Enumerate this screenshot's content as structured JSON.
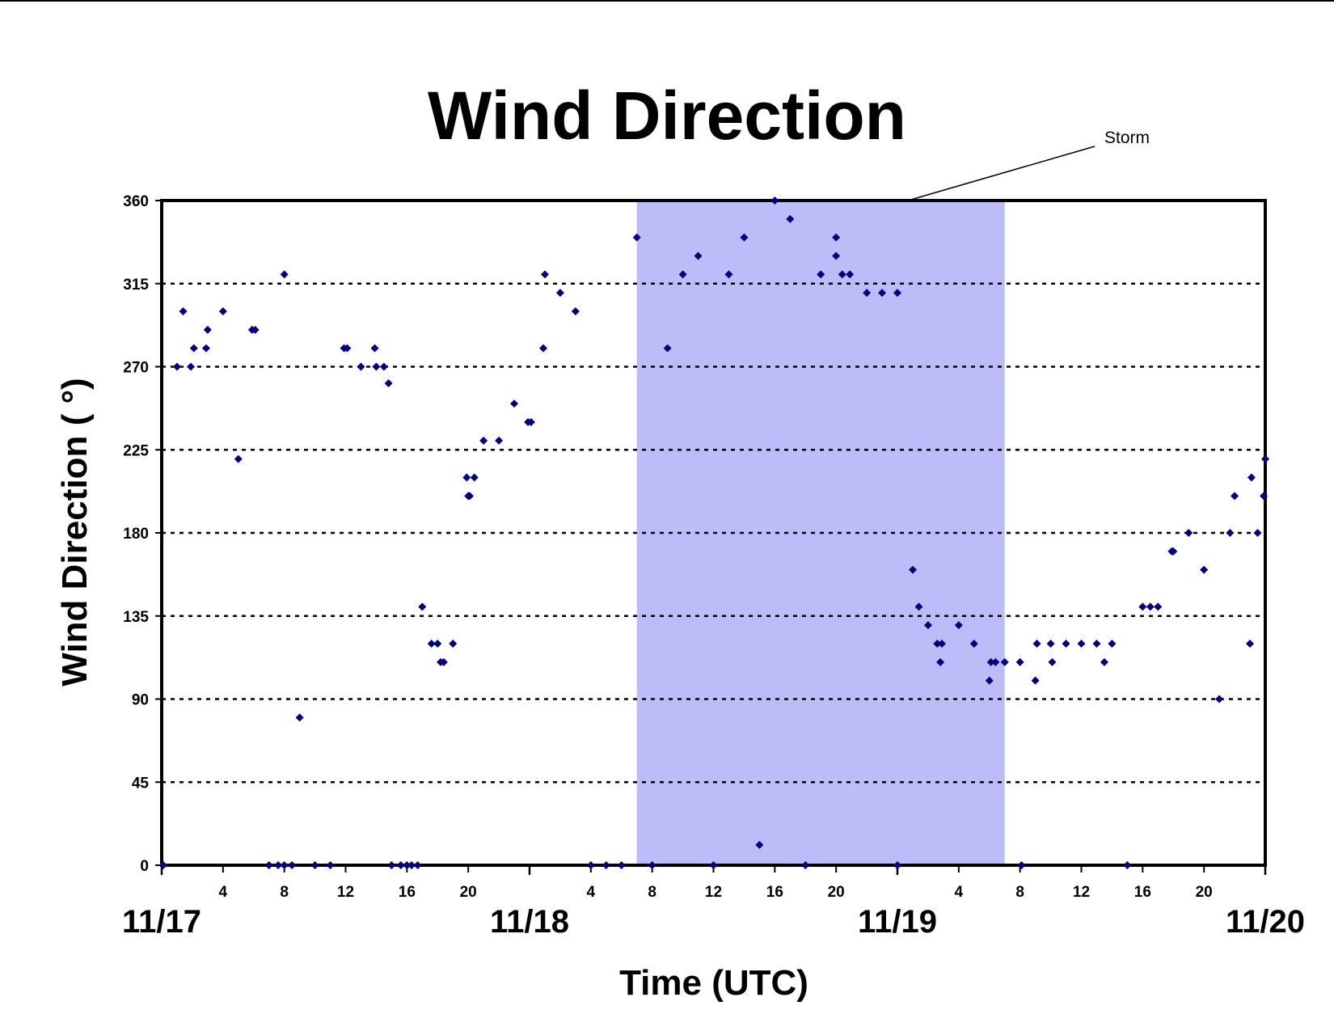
{
  "chart_data": {
    "type": "scatter",
    "title": "Wind Direction",
    "xlabel": "Time (UTC)",
    "ylabel": "Wind Direction ( °)",
    "ylim": [
      0,
      360
    ],
    "yticks": [
      "0",
      "45",
      "90",
      "135",
      "180",
      "225",
      "270",
      "315",
      "360"
    ],
    "xlim_hours": [
      0,
      72
    ],
    "x_hour_ticks": [
      {
        "hour": 4,
        "label": "4"
      },
      {
        "hour": 8,
        "label": "8"
      },
      {
        "hour": 12,
        "label": "12"
      },
      {
        "hour": 16,
        "label": "16"
      },
      {
        "hour": 20,
        "label": "20"
      },
      {
        "hour": 28,
        "label": "4"
      },
      {
        "hour": 32,
        "label": "8"
      },
      {
        "hour": 36,
        "label": "12"
      },
      {
        "hour": 40,
        "label": "16"
      },
      {
        "hour": 44,
        "label": "20"
      },
      {
        "hour": 52,
        "label": "4"
      },
      {
        "hour": 56,
        "label": "8"
      },
      {
        "hour": 60,
        "label": "12"
      },
      {
        "hour": 64,
        "label": "16"
      },
      {
        "hour": 68,
        "label": "20"
      }
    ],
    "x_date_ticks": [
      {
        "hour": 0,
        "label": "11/17"
      },
      {
        "hour": 24,
        "label": "11/18"
      },
      {
        "hour": 48,
        "label": "11/19"
      },
      {
        "hour": 72,
        "label": "11/20"
      }
    ],
    "gridlines": "horizontal dotted",
    "storm_period": {
      "start_hour": 31,
      "end_hour": 55,
      "color": "#bcbcf9"
    },
    "annotation": {
      "text": "Storm"
    },
    "marker_color": "#00007f",
    "points": [
      [
        0.1,
        0
      ],
      [
        1,
        270
      ],
      [
        1.4,
        300
      ],
      [
        1.9,
        270
      ],
      [
        2.1,
        280
      ],
      [
        2.9,
        280
      ],
      [
        3,
        290
      ],
      [
        4,
        300
      ],
      [
        5,
        220
      ],
      [
        5.9,
        290
      ],
      [
        6.1,
        290
      ],
      [
        7,
        0
      ],
      [
        7.6,
        0
      ],
      [
        8,
        320
      ],
      [
        8,
        0
      ],
      [
        8.5,
        0
      ],
      [
        9,
        80
      ],
      [
        10,
        0
      ],
      [
        11,
        0
      ],
      [
        11.9,
        280
      ],
      [
        12.1,
        280
      ],
      [
        13,
        270
      ],
      [
        13.9,
        280
      ],
      [
        14,
        270
      ],
      [
        14.5,
        270
      ],
      [
        14.8,
        261
      ],
      [
        15,
        0
      ],
      [
        15.6,
        0
      ],
      [
        16,
        0
      ],
      [
        16.3,
        0
      ],
      [
        16.7,
        0
      ],
      [
        17,
        140
      ],
      [
        17.6,
        120
      ],
      [
        18,
        120
      ],
      [
        18.2,
        110
      ],
      [
        18.4,
        110
      ],
      [
        19,
        120
      ],
      [
        19.9,
        210
      ],
      [
        20,
        200
      ],
      [
        20.1,
        200
      ],
      [
        20.4,
        210
      ],
      [
        21,
        230
      ],
      [
        22,
        230
      ],
      [
        23,
        250
      ],
      [
        23.9,
        240
      ],
      [
        24.1,
        240
      ],
      [
        24.9,
        280
      ],
      [
        25,
        320
      ],
      [
        26,
        310
      ],
      [
        27,
        300
      ],
      [
        28,
        0
      ],
      [
        29,
        0
      ],
      [
        30,
        0
      ],
      [
        31,
        340
      ],
      [
        32,
        0
      ],
      [
        33,
        280
      ],
      [
        34,
        320
      ],
      [
        35,
        330
      ],
      [
        36,
        0
      ],
      [
        37,
        320
      ],
      [
        38,
        340
      ],
      [
        39,
        11
      ],
      [
        40,
        360
      ],
      [
        41,
        350
      ],
      [
        42,
        0
      ],
      [
        43,
        320
      ],
      [
        44,
        340
      ],
      [
        44,
        330
      ],
      [
        44.4,
        320
      ],
      [
        44.9,
        320
      ],
      [
        46,
        310
      ],
      [
        47,
        310
      ],
      [
        48,
        310
      ],
      [
        48,
        0
      ],
      [
        49,
        160
      ],
      [
        49.4,
        140
      ],
      [
        50,
        130
      ],
      [
        50.6,
        120
      ],
      [
        50.9,
        120
      ],
      [
        50.8,
        110
      ],
      [
        52,
        130
      ],
      [
        53,
        120
      ],
      [
        54,
        100
      ],
      [
        54.1,
        110
      ],
      [
        54.4,
        110
      ],
      [
        55,
        110
      ],
      [
        56,
        110
      ],
      [
        56.1,
        0
      ],
      [
        57,
        100
      ],
      [
        57.1,
        120
      ],
      [
        58,
        120
      ],
      [
        58.1,
        110
      ],
      [
        59,
        120
      ],
      [
        60,
        120
      ],
      [
        61,
        120
      ],
      [
        61.5,
        110
      ],
      [
        62,
        120
      ],
      [
        63,
        0
      ],
      [
        64,
        140
      ],
      [
        64.5,
        140
      ],
      [
        65,
        140
      ],
      [
        65.9,
        170
      ],
      [
        66,
        170
      ],
      [
        67,
        180
      ],
      [
        68,
        160
      ],
      [
        69,
        90
      ],
      [
        69.7,
        180
      ],
      [
        70,
        200
      ],
      [
        71,
        120
      ],
      [
        71.1,
        210
      ],
      [
        71.5,
        180
      ],
      [
        71.9,
        200
      ],
      [
        72,
        220
      ]
    ]
  }
}
